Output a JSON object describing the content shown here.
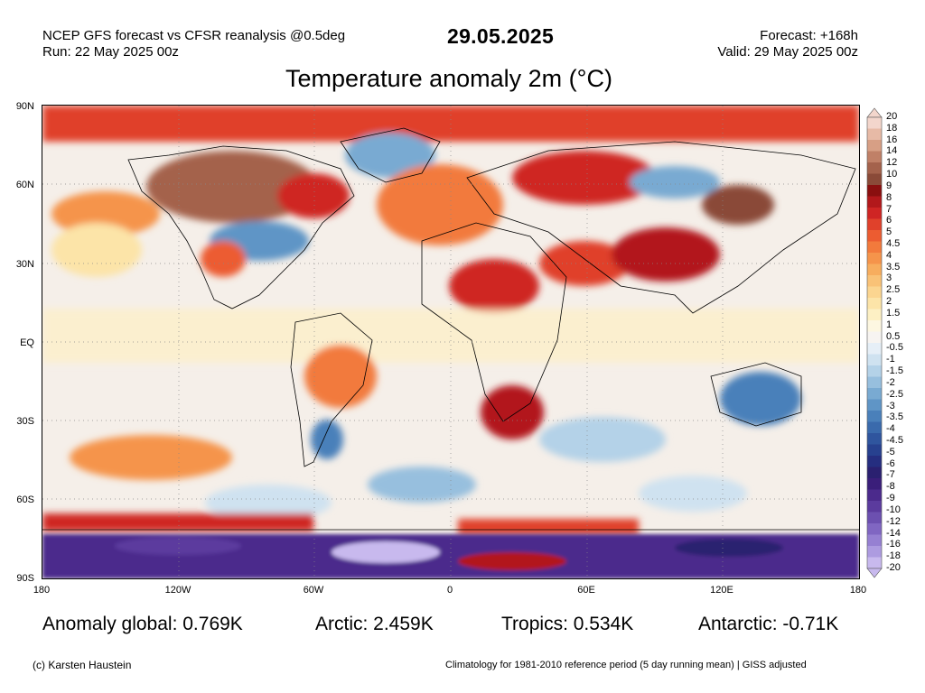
{
  "header": {
    "line1": "NCEP GFS forecast vs CFSR reanalysis @0.5deg",
    "line2": "Run: 22 May 2025 00z",
    "date": "29.05.2025",
    "forecast": "Forecast: +168h",
    "valid": "Valid: 29 May 2025 00z"
  },
  "title": "Temperature anomaly 2m (°C)",
  "axes": {
    "lat_labels": [
      "90N",
      "60N",
      "30N",
      "EQ",
      "30S",
      "60S",
      "90S"
    ],
    "lon_labels": [
      "180",
      "120W",
      "60W",
      "0",
      "60E",
      "120E",
      "180"
    ]
  },
  "colorbar": {
    "labels": [
      "20",
      "18",
      "16",
      "14",
      "12",
      "10",
      "9",
      "8",
      "7",
      "6",
      "5",
      "4.5",
      "4",
      "3.5",
      "3",
      "2.5",
      "2",
      "1.5",
      "1",
      "0.5",
      "-0.5",
      "-1",
      "-1.5",
      "-2",
      "-2.5",
      "-3",
      "-3.5",
      "-4",
      "-4.5",
      "-5",
      "-6",
      "-7",
      "-8",
      "-9",
      "-10",
      "-12",
      "-14",
      "-16",
      "-18",
      "-20"
    ],
    "colors": [
      "#f3d6cc",
      "#e7baa6",
      "#d79f85",
      "#c08067",
      "#a4624c",
      "#8a4a38",
      "#8a0f0f",
      "#b2181b",
      "#cf2524",
      "#e0412b",
      "#ec5c31",
      "#f27a3c",
      "#f5944b",
      "#f7ad5e",
      "#f9c277",
      "#fbd590",
      "#fce4a8",
      "#fdf0c4",
      "#fdf7e1",
      "#f7f4f1",
      "#e6eff7",
      "#cfe2f0",
      "#b4d2e8",
      "#97bfde",
      "#79aad2",
      "#5f95c6",
      "#4a80ba",
      "#3a6aac",
      "#2f559e",
      "#27418f",
      "#252e80",
      "#2a2070",
      "#3a1e7a",
      "#4b2a8c",
      "#5b3b9e",
      "#6c50b0",
      "#8066c2",
      "#9680d2",
      "#ad9be0",
      "#c8b9ee"
    ]
  },
  "stats": {
    "global": "Anomaly global: 0.769K",
    "arctic": "Arctic: 2.459K",
    "tropics": "Tropics: 0.534K",
    "antarctic": "Antarctic: -0.71K"
  },
  "footer": {
    "credit": "(c) Karsten Haustein",
    "climatology": "Climatology for 1981-2010 reference period (5 day running mean) | GISS adjusted"
  }
}
